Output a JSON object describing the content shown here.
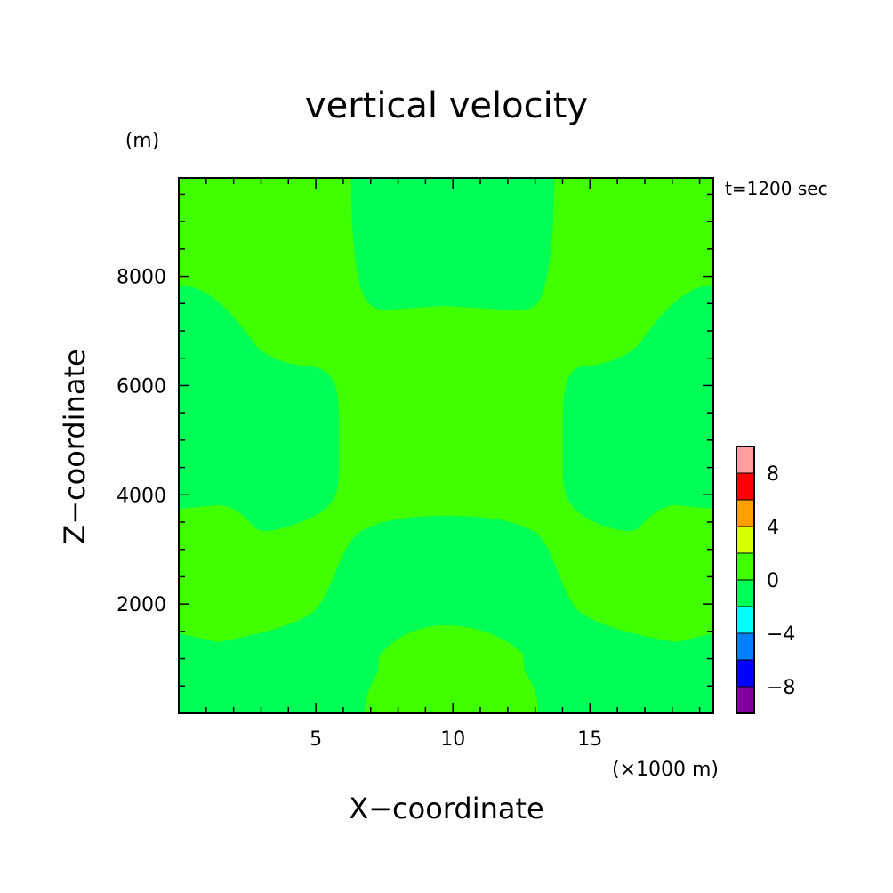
{
  "chart_data": {
    "type": "contour",
    "title": "vertical velocity",
    "time_label": "t=1200 sec",
    "xlabel": "X−coordinate",
    "x_unit": "(×1000 m)",
    "ylabel": "Z−coordinate",
    "y_unit": "(m)",
    "xlim": [
      0,
      19.5
    ],
    "ylim": [
      0,
      9800
    ],
    "x_ticks": [
      5,
      10,
      15
    ],
    "x_tick_labels": [
      "5",
      "10",
      "15"
    ],
    "y_ticks": [
      2000,
      4000,
      6000,
      8000
    ],
    "y_tick_labels": [
      "2000",
      "4000",
      "6000",
      "8000"
    ],
    "colorbar": {
      "levels": [
        -10,
        -8,
        -6,
        -4,
        -2,
        0,
        2,
        4,
        6,
        8,
        10
      ],
      "colors": [
        "#8000a0",
        "#0000ff",
        "#0080ff",
        "#00ffff",
        "#00ff55",
        "#40ff00",
        "#d8ff00",
        "#ffa000",
        "#ff0000",
        "#ff9e9e"
      ],
      "tick_values": [
        -8,
        -4,
        0,
        4,
        8
      ],
      "tick_labels": [
        "−8",
        "−4",
        "0",
        "4",
        "8"
      ]
    },
    "regions": [
      {
        "range": [
          -2,
          0
        ],
        "color": "#00ff55",
        "description": "negative vertical velocity: top-center, left, right, bottom-left/right corners"
      },
      {
        "range": [
          0,
          2
        ],
        "color": "#40ff00",
        "description": "positive vertical velocity: central cross-shaped region and bottom-center bubble"
      }
    ]
  }
}
